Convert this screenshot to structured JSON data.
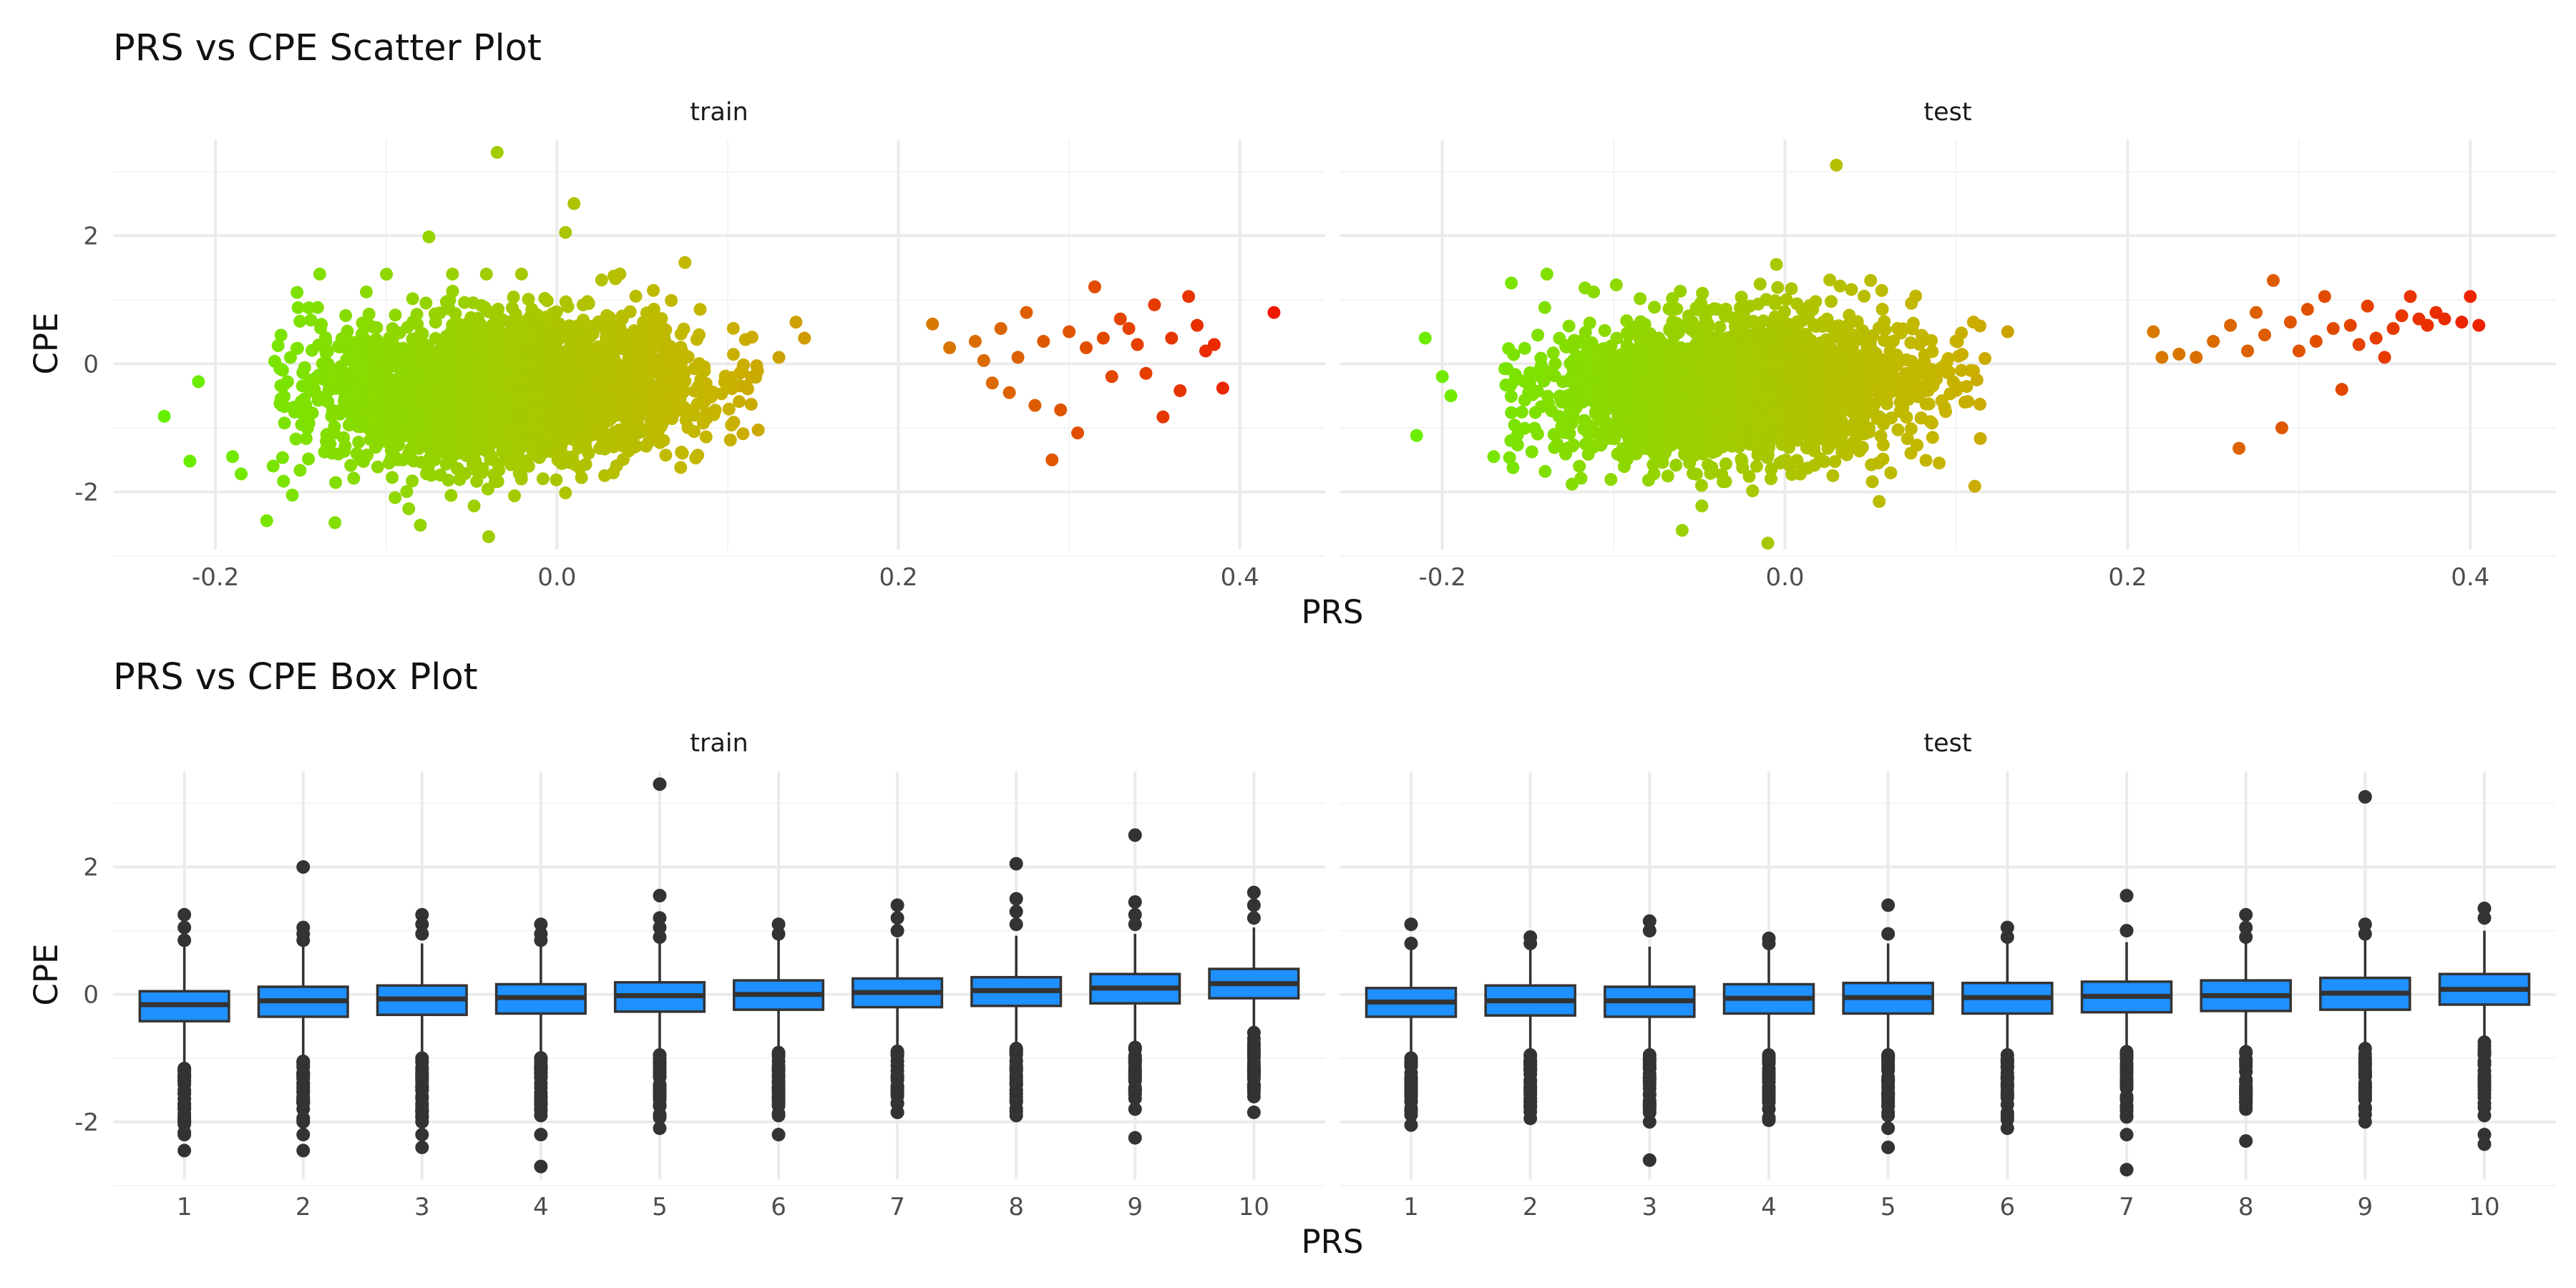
{
  "chart_data": [
    {
      "type": "scatter",
      "title": "PRS vs CPE Scatter Plot",
      "xlabel": "PRS",
      "ylabel": "CPE",
      "xlim": [
        -0.26,
        0.45
      ],
      "ylim": [
        -2.9,
        3.5
      ],
      "x_ticks": [
        -0.2,
        0.0,
        0.2,
        0.4
      ],
      "x_tick_labels": [
        "-0.2",
        "0.0",
        "0.2",
        "0.4"
      ],
      "y_ticks": [
        -2,
        0,
        2
      ],
      "y_tick_labels": [
        "-2",
        "0",
        "2"
      ],
      "grid": true,
      "color_encoding": {
        "low": "#66f000",
        "mid": "#c8b400",
        "high": "#ee1a00",
        "by": "PRS"
      },
      "facets": [
        {
          "name": "train",
          "points": [
            [
              -0.23,
              -0.82
            ],
            [
              -0.215,
              -1.52
            ],
            [
              -0.21,
              -0.28
            ],
            [
              -0.19,
              -1.45
            ],
            [
              -0.185,
              -1.72
            ],
            [
              -0.17,
              -2.45
            ],
            [
              -0.155,
              -2.05
            ],
            [
              -0.13,
              -2.48
            ],
            [
              -0.08,
              -2.52
            ],
            [
              -0.04,
              -2.7
            ],
            [
              -0.075,
              1.98
            ],
            [
              -0.035,
              3.3
            ],
            [
              0.005,
              2.05
            ],
            [
              0.01,
              2.5
            ],
            [
              0.075,
              1.58
            ],
            [
              0.14,
              0.65
            ],
            [
              0.145,
              0.4
            ],
            [
              0.13,
              0.1
            ],
            [
              0.22,
              0.62
            ],
            [
              0.23,
              0.25
            ],
            [
              0.245,
              0.35
            ],
            [
              0.25,
              0.05
            ],
            [
              0.255,
              -0.3
            ],
            [
              0.26,
              0.55
            ],
            [
              0.265,
              -0.45
            ],
            [
              0.27,
              0.1
            ],
            [
              0.275,
              0.8
            ],
            [
              0.28,
              -0.65
            ],
            [
              0.285,
              0.35
            ],
            [
              0.29,
              -1.5
            ],
            [
              0.295,
              -0.72
            ],
            [
              0.3,
              0.5
            ],
            [
              0.305,
              -1.08
            ],
            [
              0.31,
              0.25
            ],
            [
              0.315,
              1.2
            ],
            [
              0.32,
              0.4
            ],
            [
              0.325,
              -0.2
            ],
            [
              0.33,
              0.7
            ],
            [
              0.335,
              0.55
            ],
            [
              0.34,
              0.3
            ],
            [
              0.345,
              -0.15
            ],
            [
              0.35,
              0.92
            ],
            [
              0.355,
              -0.83
            ],
            [
              0.36,
              0.4
            ],
            [
              0.365,
              -0.42
            ],
            [
              0.37,
              1.05
            ],
            [
              0.375,
              0.6
            ],
            [
              0.38,
              0.2
            ],
            [
              0.385,
              0.3
            ],
            [
              0.39,
              -0.38
            ],
            [
              0.42,
              0.8
            ]
          ]
        },
        {
          "name": "test",
          "points": [
            [
              -0.215,
              -1.12
            ],
            [
              -0.21,
              0.4
            ],
            [
              -0.2,
              -0.2
            ],
            [
              -0.195,
              -0.5
            ],
            [
              -0.17,
              -1.45
            ],
            [
              -0.16,
              -1.2
            ],
            [
              -0.14,
              -1.68
            ],
            [
              -0.12,
              -1.6
            ],
            [
              -0.06,
              -2.6
            ],
            [
              -0.01,
              -2.8
            ],
            [
              0.03,
              3.1
            ],
            [
              -0.005,
              1.55
            ],
            [
              0.05,
              1.3
            ],
            [
              0.11,
              0.65
            ],
            [
              0.13,
              0.5
            ],
            [
              0.105,
              -0.6
            ],
            [
              0.09,
              -1.55
            ],
            [
              0.055,
              -2.15
            ],
            [
              0.215,
              0.5
            ],
            [
              0.22,
              0.1
            ],
            [
              0.23,
              0.15
            ],
            [
              0.24,
              0.1
            ],
            [
              0.25,
              0.35
            ],
            [
              0.26,
              0.6
            ],
            [
              0.265,
              -1.32
            ],
            [
              0.27,
              0.2
            ],
            [
              0.275,
              0.8
            ],
            [
              0.28,
              0.45
            ],
            [
              0.285,
              1.3
            ],
            [
              0.29,
              -1.0
            ],
            [
              0.295,
              0.65
            ],
            [
              0.3,
              0.2
            ],
            [
              0.305,
              0.85
            ],
            [
              0.31,
              0.35
            ],
            [
              0.315,
              1.05
            ],
            [
              0.32,
              0.55
            ],
            [
              0.325,
              -0.4
            ],
            [
              0.33,
              0.6
            ],
            [
              0.335,
              0.3
            ],
            [
              0.34,
              0.9
            ],
            [
              0.345,
              0.4
            ],
            [
              0.35,
              0.1
            ],
            [
              0.355,
              0.55
            ],
            [
              0.36,
              0.75
            ],
            [
              0.365,
              1.05
            ],
            [
              0.37,
              0.7
            ],
            [
              0.375,
              0.6
            ],
            [
              0.38,
              0.8
            ],
            [
              0.385,
              0.7
            ],
            [
              0.395,
              0.65
            ],
            [
              0.4,
              1.05
            ],
            [
              0.405,
              0.6
            ]
          ]
        }
      ]
    },
    {
      "type": "box",
      "title": "PRS vs CPE Box Plot",
      "xlabel": "PRS",
      "ylabel": "CPE",
      "ylim": [
        -2.9,
        3.5
      ],
      "y_ticks": [
        -2,
        0,
        2
      ],
      "y_tick_labels": [
        "-2",
        "0",
        "2"
      ],
      "grid": true,
      "fill_color": "#1e90ff",
      "categories": [
        "1",
        "2",
        "3",
        "4",
        "5",
        "6",
        "7",
        "8",
        "9",
        "10"
      ],
      "facets": [
        {
          "name": "train",
          "boxes": [
            {
              "q1": -0.42,
              "median": -0.16,
              "q3": 0.05,
              "whisker_low": -1.1,
              "whisker_high": 0.78,
              "outliers": [
                1.25,
                1.05,
                0.85,
                -1.2,
                -1.5,
                -1.8,
                -2.0,
                -2.2,
                -2.45
              ]
            },
            {
              "q1": -0.35,
              "median": -0.1,
              "q3": 0.12,
              "whisker_low": -0.98,
              "whisker_high": 0.8,
              "outliers": [
                2.0,
                1.05,
                0.95,
                0.85,
                -1.1,
                -1.4,
                -1.7,
                -2.0,
                -2.2,
                -2.45
              ]
            },
            {
              "q1": -0.32,
              "median": -0.07,
              "q3": 0.14,
              "whisker_low": -0.95,
              "whisker_high": 0.8,
              "outliers": [
                1.25,
                1.1,
                0.95,
                -1.0,
                -1.3,
                -1.6,
                -1.9,
                -2.2,
                -2.4
              ]
            },
            {
              "q1": -0.3,
              "median": -0.05,
              "q3": 0.16,
              "whisker_low": -0.93,
              "whisker_high": 0.8,
              "outliers": [
                1.1,
                0.95,
                0.85,
                -1.0,
                -1.3,
                -1.6,
                -1.9,
                -2.2,
                -2.7
              ]
            },
            {
              "q1": -0.27,
              "median": -0.02,
              "q3": 0.19,
              "whisker_low": -0.88,
              "whisker_high": 0.83,
              "outliers": [
                3.3,
                1.55,
                1.2,
                1.05,
                0.9,
                -0.95,
                -1.3,
                -1.6,
                -1.9,
                -2.1
              ]
            },
            {
              "q1": -0.24,
              "median": 0.0,
              "q3": 0.22,
              "whisker_low": -0.85,
              "whisker_high": 0.85,
              "outliers": [
                1.1,
                0.95,
                -0.95,
                -1.3,
                -1.6,
                -1.9,
                -2.2
              ]
            },
            {
              "q1": -0.2,
              "median": 0.03,
              "q3": 0.25,
              "whisker_low": -0.82,
              "whisker_high": 0.88,
              "outliers": [
                1.4,
                1.2,
                1.0,
                -0.9,
                -1.2,
                -1.5,
                -1.85
              ]
            },
            {
              "q1": -0.18,
              "median": 0.06,
              "q3": 0.27,
              "whisker_low": -0.8,
              "whisker_high": 0.92,
              "outliers": [
                2.05,
                1.5,
                1.3,
                1.1,
                -0.85,
                -1.2,
                -1.5,
                -1.9
              ]
            },
            {
              "q1": -0.14,
              "median": 0.1,
              "q3": 0.32,
              "whisker_low": -0.75,
              "whisker_high": 0.95,
              "outliers": [
                2.5,
                1.45,
                1.25,
                1.1,
                -0.85,
                -1.2,
                -1.5,
                -1.8,
                -2.25
              ]
            },
            {
              "q1": -0.06,
              "median": 0.17,
              "q3": 0.4,
              "whisker_low": -0.6,
              "whisker_high": 1.05,
              "outliers": [
                1.6,
                1.4,
                1.2,
                -0.6,
                -0.9,
                -1.2,
                -1.5,
                -1.85
              ]
            }
          ]
        },
        {
          "name": "test",
          "boxes": [
            {
              "q1": -0.35,
              "median": -0.12,
              "q3": 0.1,
              "whisker_low": -0.95,
              "whisker_high": 0.7,
              "outliers": [
                1.1,
                0.8,
                -1.0,
                -1.3,
                -1.6,
                -1.8,
                -2.05
              ]
            },
            {
              "q1": -0.33,
              "median": -0.1,
              "q3": 0.14,
              "whisker_low": -0.9,
              "whisker_high": 0.75,
              "outliers": [
                0.9,
                0.8,
                -0.95,
                -1.2,
                -1.5,
                -1.75
              ]
            },
            {
              "q1": -0.35,
              "median": -0.1,
              "q3": 0.12,
              "whisker_low": -0.95,
              "whisker_high": 0.75,
              "outliers": [
                1.15,
                1.0,
                -0.95,
                -1.3,
                -1.7,
                -2.0,
                -2.6
              ]
            },
            {
              "q1": -0.3,
              "median": -0.06,
              "q3": 0.16,
              "whisker_low": -0.9,
              "whisker_high": 0.78,
              "outliers": [
                0.88,
                0.8,
                -0.95,
                -1.3,
                -1.6,
                -1.95
              ]
            },
            {
              "q1": -0.3,
              "median": -0.05,
              "q3": 0.18,
              "whisker_low": -0.9,
              "whisker_high": 0.8,
              "outliers": [
                1.4,
                0.95,
                -0.95,
                -1.3,
                -1.6,
                -1.9,
                -2.1,
                -2.4
              ]
            },
            {
              "q1": -0.3,
              "median": -0.05,
              "q3": 0.18,
              "whisker_low": -0.9,
              "whisker_high": 0.8,
              "outliers": [
                1.05,
                0.9,
                -0.95,
                -1.3,
                -1.6,
                -1.9,
                -2.1
              ]
            },
            {
              "q1": -0.28,
              "median": -0.03,
              "q3": 0.2,
              "whisker_low": -0.88,
              "whisker_high": 0.82,
              "outliers": [
                1.55,
                1.0,
                -0.9,
                -1.3,
                -1.6,
                -1.9,
                -2.2,
                -2.75
              ]
            },
            {
              "q1": -0.26,
              "median": -0.02,
              "q3": 0.22,
              "whisker_low": -0.85,
              "whisker_high": 0.85,
              "outliers": [
                1.25,
                1.05,
                0.9,
                -0.9,
                -1.2,
                -1.5,
                -1.8,
                -2.3
              ]
            },
            {
              "q1": -0.24,
              "median": 0.02,
              "q3": 0.26,
              "whisker_low": -0.82,
              "whisker_high": 0.9,
              "outliers": [
                3.1,
                1.1,
                0.95,
                -0.85,
                -1.2,
                -1.5,
                -1.8,
                -2.0
              ]
            },
            {
              "q1": -0.16,
              "median": 0.08,
              "q3": 0.32,
              "whisker_low": -0.72,
              "whisker_high": 1.0,
              "outliers": [
                1.35,
                1.2,
                -0.75,
                -1.1,
                -1.5,
                -1.9,
                -2.2,
                -2.35
              ]
            }
          ]
        }
      ]
    }
  ]
}
